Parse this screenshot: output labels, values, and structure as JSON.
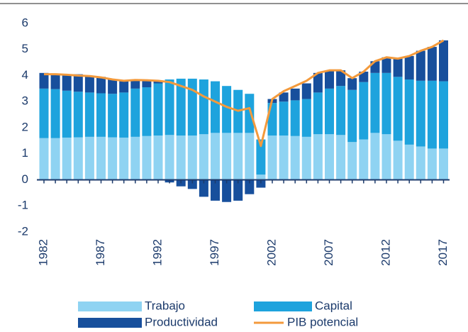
{
  "chart_data": {
    "type": "bar",
    "categories": [
      "1982",
      null,
      null,
      null,
      null,
      "1987",
      null,
      null,
      null,
      null,
      "1992",
      null,
      null,
      null,
      null,
      "1997",
      null,
      null,
      null,
      null,
      "2002",
      null,
      null,
      null,
      null,
      "2007",
      null,
      null,
      null,
      null,
      "2012",
      null,
      null,
      null,
      null,
      "2017"
    ],
    "series": [
      {
        "name": "Trabajo",
        "color": "#8fd3f2",
        "values": [
          1.6,
          1.6,
          1.62,
          1.63,
          1.65,
          1.65,
          1.63,
          1.62,
          1.65,
          1.68,
          1.7,
          1.72,
          1.7,
          1.7,
          1.75,
          1.8,
          1.8,
          1.8,
          1.8,
          0.2,
          1.7,
          1.7,
          1.68,
          1.65,
          1.75,
          1.75,
          1.72,
          1.45,
          1.55,
          1.8,
          1.75,
          1.5,
          1.35,
          1.28,
          1.2,
          1.2
        ]
      },
      {
        "name": "Capital",
        "color": "#1ea3dd",
        "values": [
          1.9,
          1.88,
          1.8,
          1.75,
          1.7,
          1.67,
          1.67,
          1.73,
          1.85,
          1.87,
          2.0,
          2.13,
          2.18,
          2.18,
          2.1,
          1.98,
          1.8,
          1.65,
          1.5,
          1.35,
          1.25,
          1.3,
          1.37,
          1.45,
          1.6,
          1.75,
          1.88,
          2.0,
          2.2,
          2.3,
          2.35,
          2.45,
          2.5,
          2.52,
          2.6,
          2.58
        ]
      },
      {
        "name": "Productividad",
        "color": "#174f9c",
        "values": [
          0.6,
          0.57,
          0.63,
          0.67,
          0.65,
          0.63,
          0.55,
          0.45,
          0.35,
          0.25,
          0.1,
          -0.1,
          -0.25,
          -0.35,
          -0.65,
          -0.8,
          -0.85,
          -0.8,
          -0.55,
          -0.3,
          0.15,
          0.35,
          0.45,
          0.6,
          0.75,
          0.7,
          0.6,
          0.45,
          0.4,
          0.45,
          0.6,
          0.7,
          0.9,
          1.15,
          1.3,
          1.57
        ]
      },
      {
        "name": "PIB potencial",
        "type": "line",
        "color": "#f39a3c",
        "values": [
          4.05,
          4.05,
          4.03,
          4.0,
          3.98,
          3.93,
          3.85,
          3.8,
          3.83,
          3.82,
          3.8,
          3.75,
          3.6,
          3.45,
          3.2,
          3.0,
          2.8,
          2.65,
          2.75,
          1.3,
          3.1,
          3.4,
          3.6,
          3.8,
          4.1,
          4.2,
          4.2,
          3.9,
          4.15,
          4.55,
          4.7,
          4.65,
          4.75,
          4.95,
          5.1,
          5.35
        ]
      }
    ],
    "ylim": [
      -2,
      6
    ],
    "yticks": [
      -2,
      -1,
      0,
      1,
      2,
      3,
      4,
      5,
      6
    ]
  }
}
